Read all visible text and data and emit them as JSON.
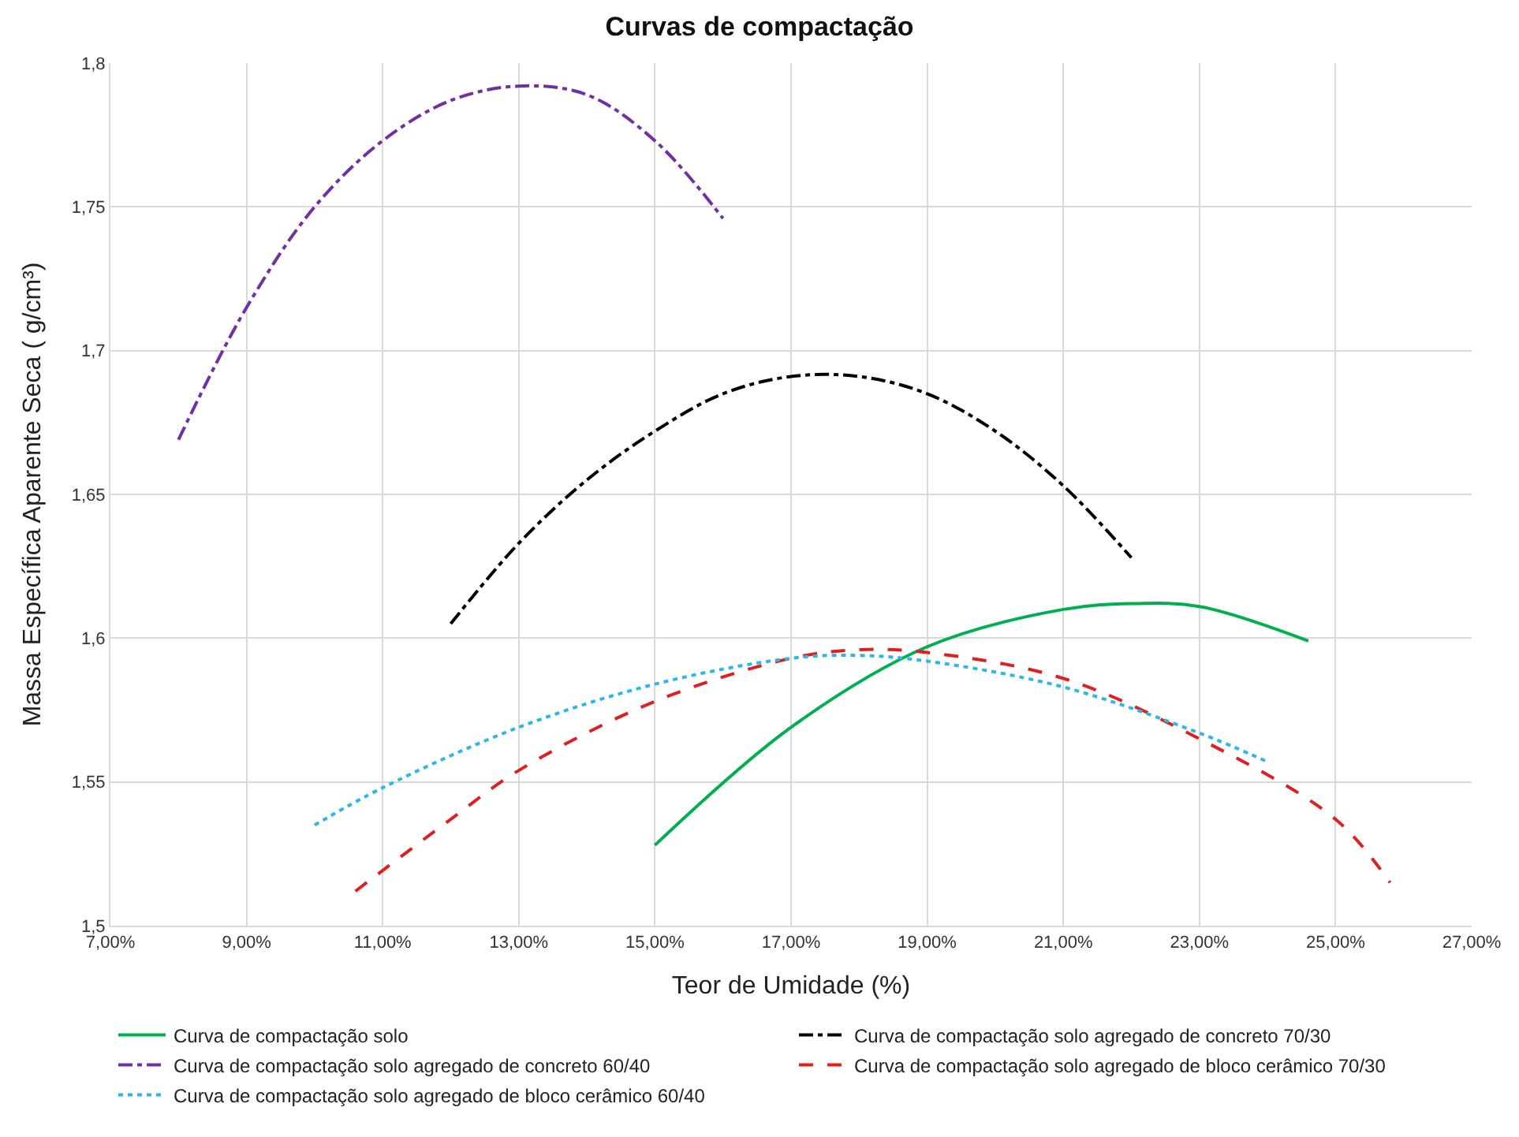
{
  "chart_data": {
    "type": "line",
    "title": "Curvas de compactação",
    "xlabel": "Teor de Umidade (%)",
    "ylabel": "Massa Específica Aparente Seca ( g/cm³)",
    "xlim": [
      7,
      27
    ],
    "xticks": [
      {
        "value": 7,
        "label": "7,00%"
      },
      {
        "value": 9,
        "label": "9,00%"
      },
      {
        "value": 11,
        "label": "11,00%"
      },
      {
        "value": 13,
        "label": "13,00%"
      },
      {
        "value": 15,
        "label": "15,00%"
      },
      {
        "value": 17,
        "label": "17,00%"
      },
      {
        "value": 19,
        "label": "19,00%"
      },
      {
        "value": 21,
        "label": "21,00%"
      },
      {
        "value": 23,
        "label": "23,00%"
      },
      {
        "value": 25,
        "label": "25,00%"
      },
      {
        "value": 27,
        "label": "27,00%"
      }
    ],
    "ylim": [
      1.5,
      1.8
    ],
    "yticks": [
      {
        "value": 1.5,
        "label": "1,5"
      },
      {
        "value": 1.55,
        "label": "1,55"
      },
      {
        "value": 1.6,
        "label": "1,6"
      },
      {
        "value": 1.65,
        "label": "1,65"
      },
      {
        "value": 1.7,
        "label": "1,7"
      },
      {
        "value": 1.75,
        "label": "1,75"
      },
      {
        "value": 1.8,
        "label": "1,8"
      }
    ],
    "grid": true,
    "legend": "bottom",
    "marker": "none",
    "series": [
      {
        "name": "Curva de compactação solo",
        "color": "#00b050",
        "line_style": "solid",
        "x": [
          15,
          17,
          19,
          21,
          22,
          23,
          24.6
        ],
        "values": [
          1.528,
          1.569,
          1.597,
          1.61,
          1.612,
          1.611,
          1.599
        ]
      },
      {
        "name": "Curva de compactação solo agregado de concreto 70/30",
        "color": "#000000",
        "line_style": "dashdot",
        "x": [
          12,
          13,
          14,
          15,
          16,
          17,
          18,
          19,
          20,
          21,
          22
        ],
        "values": [
          1.605,
          1.633,
          1.655,
          1.672,
          1.685,
          1.691,
          1.691,
          1.685,
          1.672,
          1.653,
          1.628
        ]
      },
      {
        "name": "Curva de compactação solo agregado de concreto 60/40",
        "color": "#7030a0",
        "line_style": "dashdot",
        "x": [
          8,
          9,
          10,
          11,
          12,
          13,
          14,
          15,
          16
        ],
        "values": [
          1.669,
          1.715,
          1.75,
          1.773,
          1.787,
          1.792,
          1.789,
          1.773,
          1.746
        ]
      },
      {
        "name": "Curva de compactação solo agregado de bloco cerâmico 70/30",
        "color": "#e02020",
        "line_style": "dashed",
        "x": [
          10.6,
          12,
          13,
          15,
          17,
          18,
          19,
          21,
          23,
          25,
          25.8
        ],
        "values": [
          1.512,
          1.537,
          1.554,
          1.578,
          1.593,
          1.596,
          1.595,
          1.586,
          1.565,
          1.537,
          1.515
        ]
      },
      {
        "name": "Curva de compactação solo agregado de bloco cerâmico 60/40",
        "color": "#2eb7e6",
        "line_style": "dotted",
        "x": [
          10,
          11,
          13,
          15,
          17,
          18,
          19,
          21,
          23,
          24
        ],
        "values": [
          1.535,
          1.548,
          1.569,
          1.584,
          1.593,
          1.594,
          1.592,
          1.583,
          1.567,
          1.557
        ]
      }
    ]
  }
}
